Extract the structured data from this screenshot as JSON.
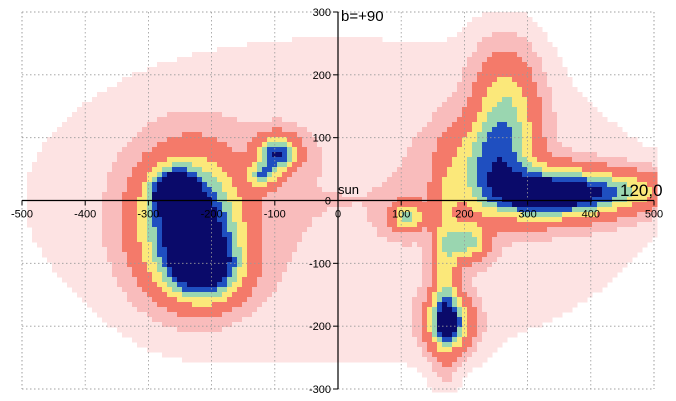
{
  "chart_data": {
    "type": "heatmap",
    "title": "",
    "xlabel": "",
    "ylabel": "",
    "xlim": [
      -500,
      500
    ],
    "ylim": [
      -300,
      300
    ],
    "grid": true,
    "x_ticks": [
      "-500",
      "-400",
      "-300",
      "-200",
      "-100",
      "0",
      "100",
      "200",
      "300",
      "400",
      "500"
    ],
    "x_tick_values": [
      -500,
      -400,
      -300,
      -200,
      -100,
      0,
      100,
      200,
      300,
      400,
      500
    ],
    "y_ticks": [
      "300",
      "200",
      "100",
      "0",
      "-100",
      "-200",
      "-300"
    ],
    "y_tick_values": [
      300,
      200,
      100,
      0,
      -100,
      -200,
      -300
    ],
    "annotations": {
      "north_pole": "b=+90",
      "sun": "sun",
      "direction": "120,0"
    },
    "colors": {
      "background": "#ffffff",
      "faint": "#fde3e3",
      "low": "#f9bcbc",
      "mid": "#f47a6a",
      "high": "#fbe87a",
      "higher": "#9ad6b0",
      "peak": "#1f4fc0",
      "max": "#0a0a6a",
      "contour": "#7a1aa0"
    },
    "structures": [
      {
        "x": -235,
        "y": -35,
        "sx": 55,
        "sy": 70,
        "amp": 1.0
      },
      {
        "x": -210,
        "y": -110,
        "sx": 40,
        "sy": 35,
        "amp": 0.7
      },
      {
        "x": -260,
        "y": 15,
        "sx": 22,
        "sy": 22,
        "amp": 0.75
      },
      {
        "x": -95,
        "y": 75,
        "sx": 22,
        "sy": 20,
        "amp": 0.75
      },
      {
        "x": -120,
        "y": 40,
        "sx": 16,
        "sy": 14,
        "amp": 0.5
      },
      {
        "x": 330,
        "y": 10,
        "sx": 75,
        "sy": 28,
        "amp": 0.95
      },
      {
        "x": 265,
        "y": 130,
        "sx": 35,
        "sy": 70,
        "amp": 0.55
      },
      {
        "x": 230,
        "y": 65,
        "sx": 45,
        "sy": 40,
        "amp": 0.4
      },
      {
        "x": 175,
        "y": -195,
        "sx": 25,
        "sy": 30,
        "amp": 0.75
      },
      {
        "x": 170,
        "y": -110,
        "sx": 14,
        "sy": 95,
        "amp": 0.4
      },
      {
        "x": 205,
        "y": -65,
        "sx": 22,
        "sy": 22,
        "amp": 0.55
      },
      {
        "x": 110,
        "y": -25,
        "sx": 18,
        "sy": 16,
        "amp": 0.55
      },
      {
        "x": 450,
        "y": 15,
        "sx": 70,
        "sy": 22,
        "amp": 0.35
      },
      {
        "x": 0,
        "y": 0,
        "sx": 420,
        "sy": 220,
        "amp": 0.12
      }
    ]
  }
}
